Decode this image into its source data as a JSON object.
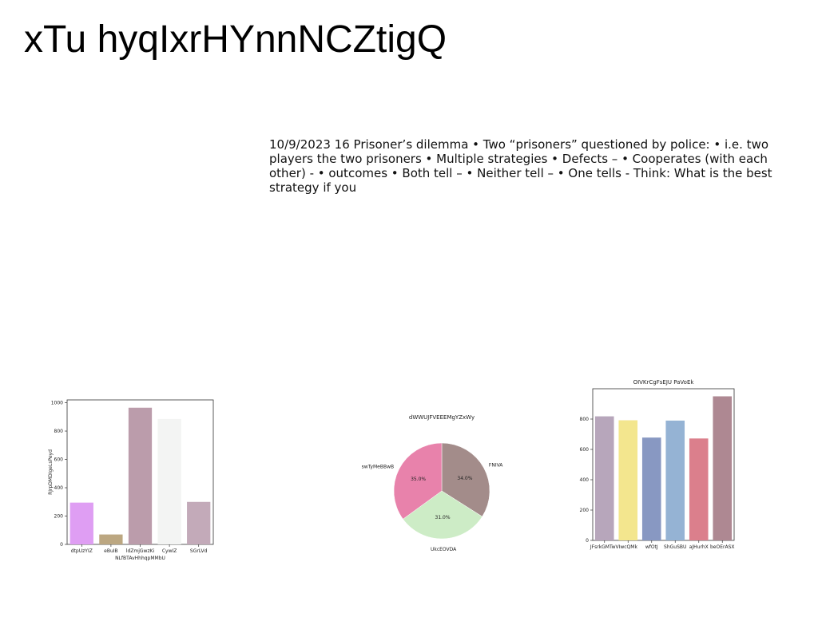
{
  "slide": {
    "title": "xTu hyqIxrHYnnNCZtigQ",
    "body": "10/9/2023 16 Prisoner’s dilemma • Two “prisoners” questioned by police: • i.e. two players the two prisoners • Multiple strategies • Defects – • Cooperates (with each other) - • outcomes • Both tell – • Neither tell – • One tells - Think: What is the best strategy if you"
  },
  "chart_data": [
    {
      "type": "bar",
      "title": "",
      "xlabel": "NLfBTAvHhhqpMMbU",
      "ylabel": "RJrpDMDIgeLsPeyd",
      "categories": [
        "dtpUzYIZ",
        "eBuIB",
        "ldZmjGwzKi",
        "CywIZ",
        "SGrLVd"
      ],
      "values": [
        295,
        70,
        965,
        885,
        300
      ],
      "colors": [
        "#df9ef3",
        "#bca781",
        "#bb9cab",
        "#f3f4f3",
        "#c3aab9"
      ],
      "ylim": [
        0,
        1020
      ],
      "yticks": [
        0,
        200,
        400,
        600,
        800,
        1000
      ],
      "grid": false
    },
    {
      "type": "pie",
      "title": "dWWUJFVEEEMgYZxWy",
      "categories": [
        "FNIVA",
        "UkcEOVDA",
        "swTyMeBBwB"
      ],
      "values": [
        34.0,
        31.0,
        35.0
      ],
      "labels": [
        "34.0%",
        "31.0%",
        "35.0%"
      ],
      "colors": [
        "#a38c8a",
        "#cdecc6",
        "#e882ab"
      ]
    },
    {
      "type": "bar",
      "title": "OIVKrCgFsEJU PaVoEk",
      "xlabel": "",
      "ylabel": "",
      "categories": [
        "JFsrkGMTwV",
        "IwcQMk",
        "wfOtJ",
        "ShGuSBU",
        "aJHurhX",
        "beOErASX"
      ],
      "values": [
        818,
        792,
        678,
        790,
        672,
        950
      ],
      "colors": [
        "#b7a6bb",
        "#f3e68e",
        "#8898c2",
        "#95b3d4",
        "#db7f8c",
        "#ae8892"
      ],
      "ylim": [
        0,
        1000
      ],
      "yticks": [
        0,
        200,
        400,
        600,
        800
      ],
      "grid": false
    }
  ]
}
